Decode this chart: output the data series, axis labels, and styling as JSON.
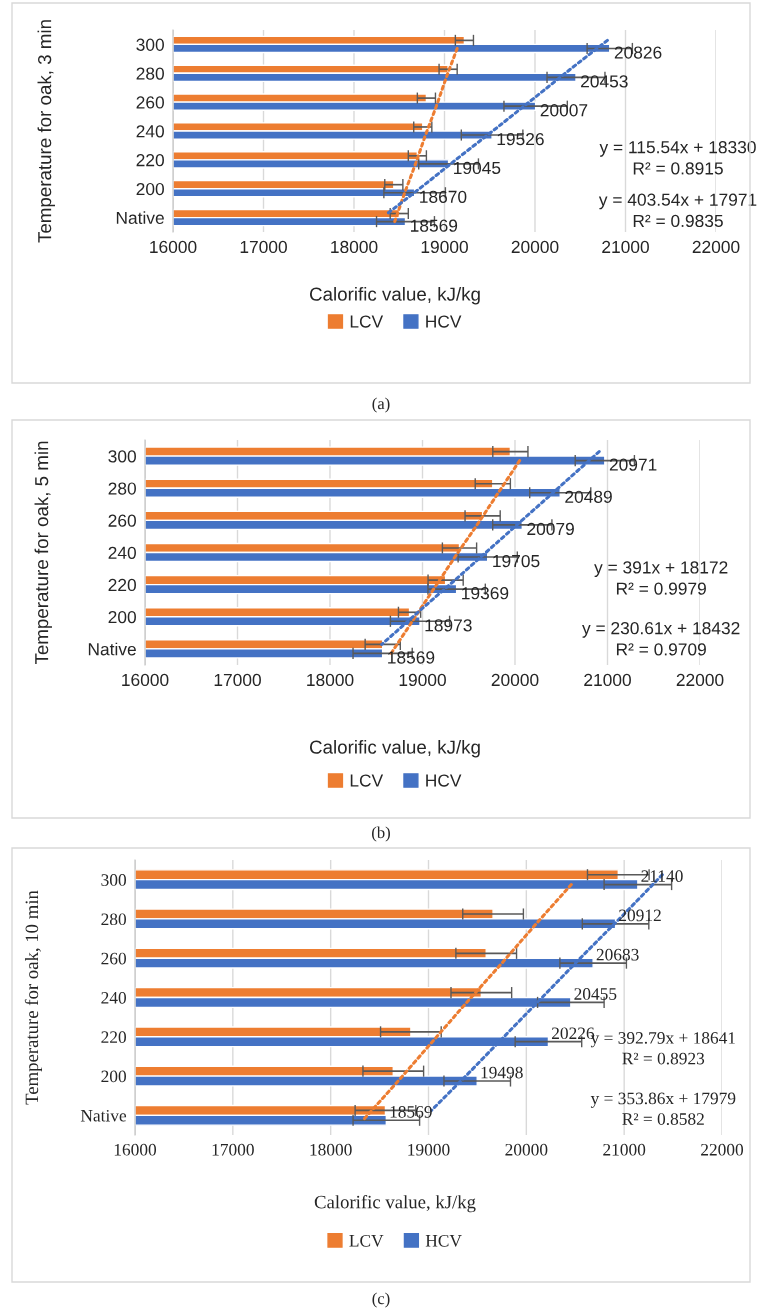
{
  "chart_data": [
    {
      "type": "bar",
      "orientation": "horizontal",
      "ylabel": "Temperature for oak, 3 min",
      "xlabel": "Calorific value, kJ/kg",
      "categories": [
        "300",
        "280",
        "260",
        "240",
        "220",
        "200",
        "Native"
      ],
      "xlim": [
        16000,
        22000
      ],
      "xticks": [
        16000,
        17000,
        18000,
        19000,
        20000,
        21000,
        22000
      ],
      "grid": "x",
      "legend": "bottom",
      "series": [
        {
          "name": "LCV",
          "color": "#ed7d31",
          "values": [
            19220,
            19040,
            18800,
            18760,
            18700,
            18440,
            18500
          ],
          "errors": [
            100,
            100,
            100,
            100,
            100,
            100,
            100
          ]
        },
        {
          "name": "HCV",
          "color": "#4472c4",
          "values": [
            20826,
            20453,
            20007,
            19526,
            19045,
            18670,
            18569
          ],
          "errors": [
            250,
            320,
            350,
            340,
            330,
            340,
            320
          ],
          "value_labels": [
            "20826",
            "20453",
            "20007",
            "19526",
            "19045",
            "18670",
            "18569"
          ]
        },
        {
          "type": "line",
          "line_style": "dotted",
          "color": "#ed7d31",
          "values": [
            19140,
            19020,
            18910,
            18790,
            18680,
            18560,
            18450
          ]
        },
        {
          "type": "line",
          "line_style": "dotted",
          "color": "#4472c4",
          "values": [
            20800,
            20390,
            19990,
            19590,
            19180,
            18780,
            18370
          ]
        }
      ],
      "annotations": [
        "y = 115.54x + 18330\nR² = 0.8915",
        "y = 403.54x + 17971\nR² = 0.9835",
        "(a)"
      ]
    },
    {
      "type": "bar",
      "orientation": "horizontal",
      "ylabel": "Temperature for oak, 5 min",
      "xlabel": "Calorific value, kJ/kg",
      "categories": [
        "300",
        "280",
        "260",
        "240",
        "220",
        "200",
        "Native"
      ],
      "xlim": [
        16000,
        22000
      ],
      "xticks": [
        16000,
        17000,
        18000,
        19000,
        20000,
        21000,
        22000
      ],
      "grid": "x",
      "legend": "bottom",
      "series": [
        {
          "name": "LCV",
          "color": "#ed7d31",
          "values": [
            19950,
            19760,
            19650,
            19400,
            19250,
            18860,
            18570
          ],
          "errors": [
            190,
            190,
            190,
            185,
            190,
            120,
            190
          ]
        },
        {
          "name": "HCV",
          "color": "#4472c4",
          "values": [
            20971,
            20489,
            20079,
            19705,
            19369,
            18973,
            18569
          ],
          "errors": [
            320,
            330,
            320,
            320,
            310,
            320,
            320
          ],
          "value_labels": [
            "20971",
            "20489",
            "20079",
            "19705",
            "19369",
            "18973",
            "18569"
          ]
        },
        {
          "type": "line",
          "line_style": "dotted",
          "color": "#ed7d31",
          "values": [
            20050,
            19820,
            19590,
            19350,
            19120,
            18890,
            18660
          ]
        },
        {
          "type": "line",
          "line_style": "dotted",
          "color": "#4472c4",
          "values": [
            20910,
            20520,
            20130,
            19740,
            19350,
            18950,
            18560
          ]
        }
      ],
      "annotations": [
        "y = 391x + 18172\nR² = 0.9979",
        "y = 230.61x + 18432\nR² = 0.9709",
        "(b)"
      ]
    },
    {
      "type": "bar",
      "orientation": "horizontal",
      "ylabel": "Temperature for oak, 10 min",
      "xlabel": "Calorific value, kJ/kg",
      "categories": [
        "300",
        "280",
        "260",
        "240",
        "220",
        "200",
        "Native"
      ],
      "xlim": [
        16000,
        22000
      ],
      "xticks": [
        16000,
        17000,
        18000,
        19000,
        20000,
        21000,
        22000
      ],
      "grid": "x",
      "legend": "bottom",
      "series": [
        {
          "name": "LCV",
          "color": "#ed7d31",
          "values": [
            20940,
            19660,
            19590,
            19540,
            18820,
            18640,
            18560
          ],
          "errors": [
            315,
            310,
            310,
            310,
            310,
            310,
            310
          ]
        },
        {
          "name": "HCV",
          "color": "#4472c4",
          "values": [
            21140,
            20912,
            20683,
            20455,
            20226,
            19498,
            18569
          ],
          "errors": [
            345,
            340,
            340,
            340,
            340,
            340,
            340
          ],
          "value_labels": [
            "21140",
            "20912",
            "20683",
            "20455",
            "20226",
            "19498",
            "18569"
          ]
        },
        {
          "type": "line",
          "line_style": "dotted",
          "color": "#ed7d31",
          "values": [
            20460,
            20100,
            19750,
            19390,
            19040,
            18690,
            18330
          ]
        },
        {
          "type": "line",
          "line_style": "dotted",
          "color": "#4472c4",
          "values": [
            21390,
            21000,
            20600,
            20210,
            19820,
            19430,
            19030
          ]
        }
      ],
      "annotations": [
        "y = 392.79x + 18641\nR² = 0.8923",
        "y = 353.86x + 17979\nR² = 0.8582",
        "(c)"
      ]
    }
  ]
}
